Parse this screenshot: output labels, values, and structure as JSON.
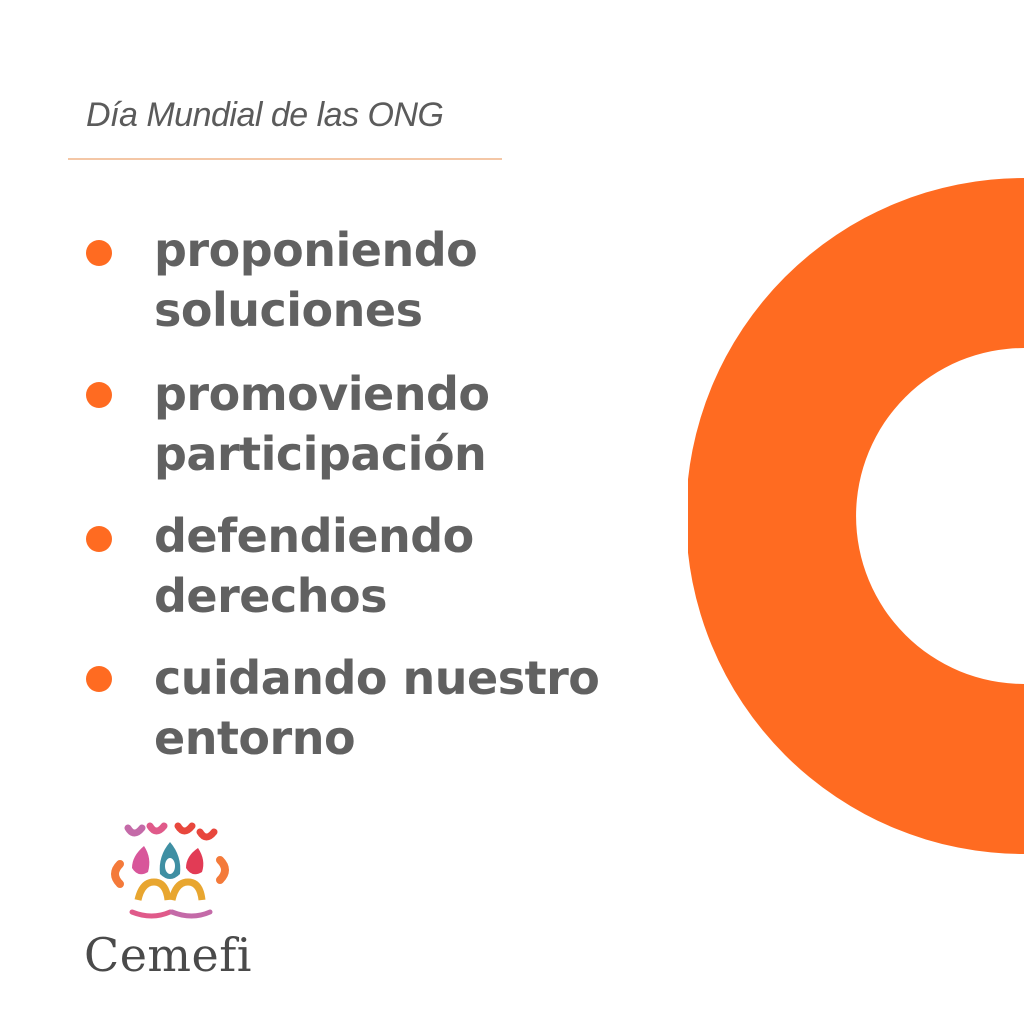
{
  "header": {
    "subtitle": "Día Mundial de las ONG"
  },
  "items": [
    {
      "line1": "proponiendo",
      "line2": "soluciones"
    },
    {
      "line1": "promoviendo",
      "line2": "participación"
    },
    {
      "line1": "defendiendo",
      "line2": "derechos"
    },
    {
      "line1": "cuidando nuestro",
      "line2": "entorno"
    }
  ],
  "brand": {
    "name": "Cemefi"
  },
  "colors": {
    "accent": "#ff6b21",
    "text": "#616161",
    "rule": "#f4c7a6"
  },
  "decoration": {
    "ring_icon": "orange-ring",
    "logo_icon": "cemefi-logo-mark"
  }
}
